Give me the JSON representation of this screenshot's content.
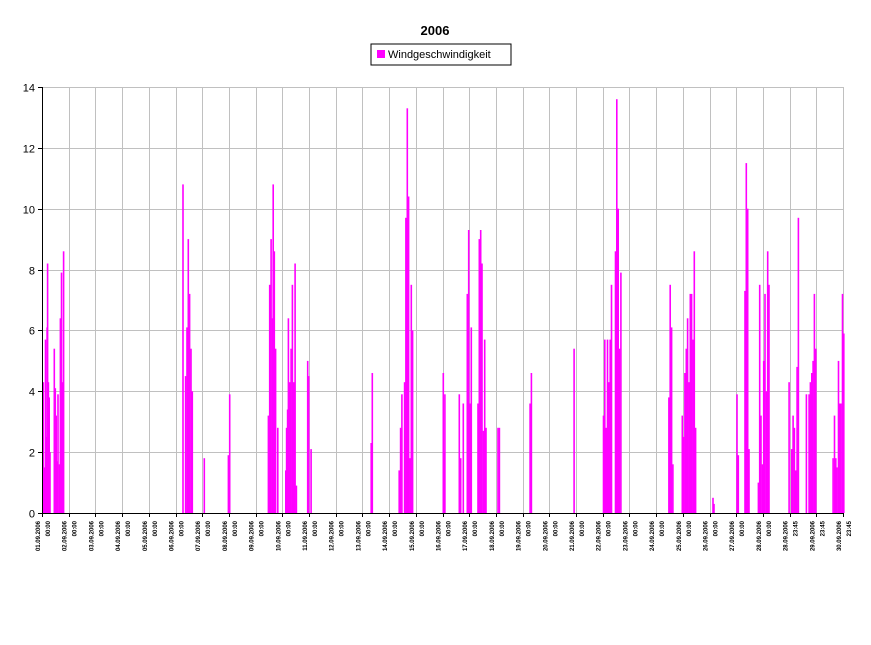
{
  "chart_data": {
    "type": "bar",
    "title": "2006",
    "legend": {
      "position": "top-center"
    },
    "grid": true,
    "colors": {
      "series": "#ff00ff",
      "grid": "#c0c0c0",
      "axis": "#000000"
    },
    "ylim": [
      0,
      14
    ],
    "yticks": [
      "0",
      "2",
      "4",
      "6",
      "8",
      "10",
      "12",
      "14"
    ],
    "xlabels": [
      "01.09.2006 00:00",
      "02.09.2006 00:00",
      "03.09.2006 00:00",
      "04.09.2006 00:00",
      "05.09.2006 00:00",
      "06.09.2006 00:00",
      "07.09.2006 00:00",
      "08.09.2006 00:00",
      "09.09.2006 00:00",
      "10.09.2006 00:00",
      "11.09.2006 00:00",
      "12.09.2006 00:00",
      "13.09.2006 00:00",
      "14.09.2006 00:00",
      "15.09.2006 00:00",
      "16.09.2006 00:00",
      "17.09.2006 00:00",
      "18.09.2006 00:00",
      "19.09.2006 00:00",
      "20.09.2006 00:00",
      "21.09.2006 00:00",
      "22.09.2006 00:00",
      "23.09.2006 00:00",
      "24.09.2006 00:00",
      "25.09.2006 00:00",
      "26.09.2006 00:00",
      "27.09.2006 00:00",
      "28.09.2006 00:00",
      "28.09.2006 23:45",
      "29.09.2006 23:45",
      "30.09.2006 23:45"
    ],
    "series": [
      {
        "name": "Windgeschwindigkeit",
        "points": [
          {
            "x": 0.02,
            "y": 4.3
          },
          {
            "x": 0.07,
            "y": 1.5
          },
          {
            "x": 0.1,
            "y": 5.7
          },
          {
            "x": 0.13,
            "y": 2.5
          },
          {
            "x": 0.16,
            "y": 6.1
          },
          {
            "x": 0.18,
            "y": 8.2
          },
          {
            "x": 0.21,
            "y": 4.3
          },
          {
            "x": 0.24,
            "y": 3.8
          },
          {
            "x": 0.27,
            "y": 2.0
          },
          {
            "x": 0.43,
            "y": 5.4
          },
          {
            "x": 0.47,
            "y": 4.1
          },
          {
            "x": 0.5,
            "y": 3.2
          },
          {
            "x": 0.53,
            "y": 1.7
          },
          {
            "x": 0.57,
            "y": 3.9
          },
          {
            "x": 0.62,
            "y": 1.6
          },
          {
            "x": 0.66,
            "y": 6.4
          },
          {
            "x": 0.7,
            "y": 7.9
          },
          {
            "x": 0.74,
            "y": 4.3
          },
          {
            "x": 0.78,
            "y": 8.6
          },
          {
            "x": 5.25,
            "y": 10.8
          },
          {
            "x": 5.35,
            "y": 4.5
          },
          {
            "x": 5.4,
            "y": 6.1
          },
          {
            "x": 5.45,
            "y": 9.0
          },
          {
            "x": 5.5,
            "y": 7.2
          },
          {
            "x": 5.55,
            "y": 5.4
          },
          {
            "x": 5.6,
            "y": 4.0
          },
          {
            "x": 6.05,
            "y": 1.8
          },
          {
            "x": 6.95,
            "y": 1.9
          },
          {
            "x": 7.0,
            "y": 3.9
          },
          {
            "x": 8.45,
            "y": 3.2
          },
          {
            "x": 8.5,
            "y": 7.5
          },
          {
            "x": 8.55,
            "y": 9.0
          },
          {
            "x": 8.6,
            "y": 6.4
          },
          {
            "x": 8.63,
            "y": 10.8
          },
          {
            "x": 8.67,
            "y": 8.6
          },
          {
            "x": 8.72,
            "y": 5.4
          },
          {
            "x": 8.8,
            "y": 2.8
          },
          {
            "x": 9.1,
            "y": 1.4
          },
          {
            "x": 9.13,
            "y": 2.8
          },
          {
            "x": 9.17,
            "y": 3.4
          },
          {
            "x": 9.2,
            "y": 6.4
          },
          {
            "x": 9.25,
            "y": 4.3
          },
          {
            "x": 9.3,
            "y": 5.4
          },
          {
            "x": 9.35,
            "y": 7.5
          },
          {
            "x": 9.4,
            "y": 4.3
          },
          {
            "x": 9.45,
            "y": 8.2
          },
          {
            "x": 9.5,
            "y": 0.9
          },
          {
            "x": 9.92,
            "y": 5.0
          },
          {
            "x": 9.96,
            "y": 4.5
          },
          {
            "x": 10.05,
            "y": 2.1
          },
          {
            "x": 12.3,
            "y": 2.3
          },
          {
            "x": 12.34,
            "y": 4.6
          },
          {
            "x": 13.35,
            "y": 1.4
          },
          {
            "x": 13.4,
            "y": 2.8
          },
          {
            "x": 13.45,
            "y": 3.9
          },
          {
            "x": 13.55,
            "y": 4.3
          },
          {
            "x": 13.6,
            "y": 9.7
          },
          {
            "x": 13.65,
            "y": 13.3
          },
          {
            "x": 13.7,
            "y": 10.4
          },
          {
            "x": 13.75,
            "y": 1.8
          },
          {
            "x": 13.8,
            "y": 7.5
          },
          {
            "x": 13.85,
            "y": 6.0
          },
          {
            "x": 15.0,
            "y": 4.6
          },
          {
            "x": 15.03,
            "y": 2.0
          },
          {
            "x": 15.06,
            "y": 3.9
          },
          {
            "x": 15.6,
            "y": 3.9
          },
          {
            "x": 15.65,
            "y": 1.8
          },
          {
            "x": 15.75,
            "y": 3.6
          },
          {
            "x": 15.9,
            "y": 7.2
          },
          {
            "x": 15.95,
            "y": 9.3
          },
          {
            "x": 16.0,
            "y": 3.6
          },
          {
            "x": 16.05,
            "y": 6.1
          },
          {
            "x": 16.3,
            "y": 3.6
          },
          {
            "x": 16.35,
            "y": 9.0
          },
          {
            "x": 16.4,
            "y": 9.3
          },
          {
            "x": 16.45,
            "y": 8.2
          },
          {
            "x": 16.5,
            "y": 2.7
          },
          {
            "x": 16.55,
            "y": 5.7
          },
          {
            "x": 16.6,
            "y": 2.8
          },
          {
            "x": 17.05,
            "y": 2.8
          },
          {
            "x": 17.1,
            "y": 2.8
          },
          {
            "x": 18.25,
            "y": 3.6
          },
          {
            "x": 18.3,
            "y": 4.6
          },
          {
            "x": 19.9,
            "y": 5.4
          },
          {
            "x": 21.0,
            "y": 3.2
          },
          {
            "x": 21.05,
            "y": 5.7
          },
          {
            "x": 21.1,
            "y": 2.8
          },
          {
            "x": 21.15,
            "y": 5.7
          },
          {
            "x": 21.2,
            "y": 4.3
          },
          {
            "x": 21.25,
            "y": 5.7
          },
          {
            "x": 21.3,
            "y": 7.5
          },
          {
            "x": 21.45,
            "y": 8.6
          },
          {
            "x": 21.5,
            "y": 13.6
          },
          {
            "x": 21.55,
            "y": 10.0
          },
          {
            "x": 21.6,
            "y": 5.4
          },
          {
            "x": 21.65,
            "y": 7.9
          },
          {
            "x": 23.45,
            "y": 3.8
          },
          {
            "x": 23.5,
            "y": 7.5
          },
          {
            "x": 23.55,
            "y": 6.1
          },
          {
            "x": 23.6,
            "y": 1.6
          },
          {
            "x": 23.95,
            "y": 3.2
          },
          {
            "x": 24.0,
            "y": 2.5
          },
          {
            "x": 24.05,
            "y": 4.6
          },
          {
            "x": 24.1,
            "y": 5.4
          },
          {
            "x": 24.15,
            "y": 6.4
          },
          {
            "x": 24.2,
            "y": 4.3
          },
          {
            "x": 24.25,
            "y": 7.2
          },
          {
            "x": 24.3,
            "y": 7.2
          },
          {
            "x": 24.35,
            "y": 5.7
          },
          {
            "x": 24.4,
            "y": 8.6
          },
          {
            "x": 24.45,
            "y": 2.8
          },
          {
            "x": 25.1,
            "y": 0.5
          },
          {
            "x": 25.14,
            "y": 0.3
          },
          {
            "x": 26.0,
            "y": 3.9
          },
          {
            "x": 26.05,
            "y": 1.9
          },
          {
            "x": 26.3,
            "y": 7.3
          },
          {
            "x": 26.35,
            "y": 11.5
          },
          {
            "x": 26.4,
            "y": 10.0
          },
          {
            "x": 26.45,
            "y": 2.1
          },
          {
            "x": 26.8,
            "y": 1.0
          },
          {
            "x": 26.85,
            "y": 7.5
          },
          {
            "x": 26.9,
            "y": 3.2
          },
          {
            "x": 26.95,
            "y": 1.6
          },
          {
            "x": 27.0,
            "y": 5.0
          },
          {
            "x": 27.05,
            "y": 7.2
          },
          {
            "x": 27.1,
            "y": 4.0
          },
          {
            "x": 27.15,
            "y": 8.6
          },
          {
            "x": 27.2,
            "y": 7.5
          },
          {
            "x": 27.95,
            "y": 4.3
          },
          {
            "x": 28.05,
            "y": 2.1
          },
          {
            "x": 28.1,
            "y": 3.2
          },
          {
            "x": 28.15,
            "y": 2.8
          },
          {
            "x": 28.2,
            "y": 1.4
          },
          {
            "x": 28.25,
            "y": 4.8
          },
          {
            "x": 28.3,
            "y": 9.7
          },
          {
            "x": 28.6,
            "y": 3.9
          },
          {
            "x": 28.7,
            "y": 3.9
          },
          {
            "x": 28.75,
            "y": 4.3
          },
          {
            "x": 28.8,
            "y": 4.6
          },
          {
            "x": 28.85,
            "y": 5.0
          },
          {
            "x": 28.9,
            "y": 7.2
          },
          {
            "x": 28.95,
            "y": 5.4
          },
          {
            "x": 29.6,
            "y": 1.8
          },
          {
            "x": 29.65,
            "y": 3.2
          },
          {
            "x": 29.7,
            "y": 1.8
          },
          {
            "x": 29.75,
            "y": 1.5
          },
          {
            "x": 29.8,
            "y": 5.0
          },
          {
            "x": 29.85,
            "y": 3.6
          },
          {
            "x": 29.9,
            "y": 3.6
          },
          {
            "x": 29.95,
            "y": 7.2
          },
          {
            "x": 30.0,
            "y": 5.9
          }
        ]
      }
    ]
  }
}
